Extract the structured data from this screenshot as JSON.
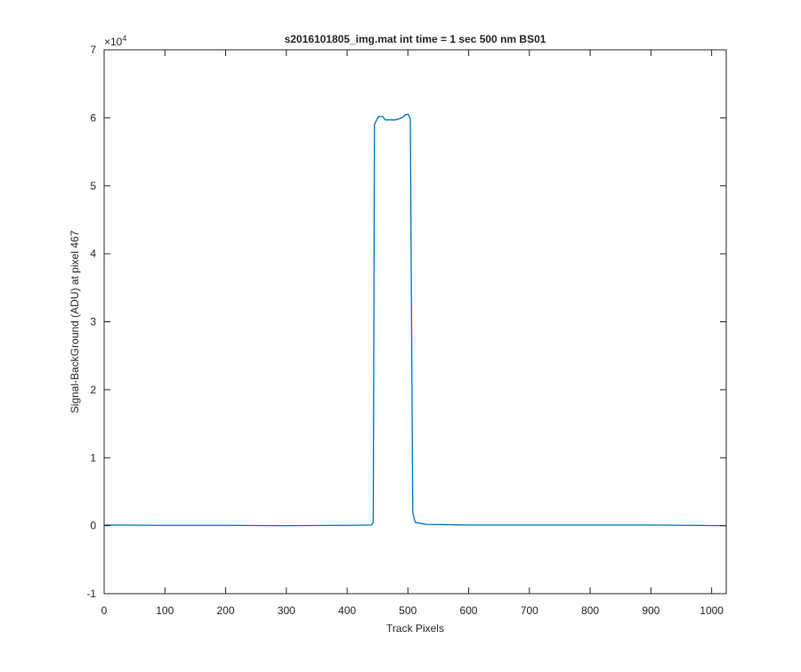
{
  "chart_data": {
    "type": "line",
    "title": "s2016101805_img.mat int time = 1 sec  500 nm BS01",
    "xlabel": "Track Pixels",
    "ylabel": "Signal-BackGround (ADU) at pixel 467",
    "y_exponent_base": "×10",
    "y_exponent_power": "4",
    "xlim": [
      0,
      1024
    ],
    "ylim": [
      -1,
      7
    ],
    "y_scale_factor": 10000,
    "x_ticks": [
      0,
      100,
      200,
      300,
      400,
      500,
      600,
      700,
      800,
      900,
      1000
    ],
    "y_ticks": [
      -1,
      0,
      1,
      2,
      3,
      4,
      5,
      6,
      7
    ],
    "x_tick_labels": [
      "0",
      "100",
      "200",
      "300",
      "400",
      "500",
      "600",
      "700",
      "800",
      "900",
      "1000"
    ],
    "y_tick_labels": [
      "-1",
      "0",
      "1",
      "2",
      "3",
      "4",
      "5",
      "6",
      "7"
    ],
    "grid": false,
    "box": true,
    "series": [
      {
        "color": "#0072bd",
        "points": [
          [
            1,
            0.01
          ],
          [
            100,
            0.005
          ],
          [
            200,
            0.005
          ],
          [
            300,
            0.0
          ],
          [
            400,
            0.005
          ],
          [
            440,
            0.01
          ],
          [
            443,
            0.05
          ],
          [
            445,
            5.9
          ],
          [
            448,
            5.96
          ],
          [
            452,
            6.02
          ],
          [
            458,
            6.02
          ],
          [
            463,
            5.97
          ],
          [
            470,
            5.97
          ],
          [
            480,
            5.97
          ],
          [
            490,
            6.0
          ],
          [
            497,
            6.05
          ],
          [
            501,
            6.05
          ],
          [
            504,
            5.98
          ],
          [
            506,
            3.0
          ],
          [
            508,
            0.2
          ],
          [
            512,
            0.05
          ],
          [
            530,
            0.02
          ],
          [
            600,
            0.01
          ],
          [
            700,
            0.01
          ],
          [
            800,
            0.01
          ],
          [
            900,
            0.01
          ],
          [
            1024,
            0.0
          ]
        ]
      }
    ]
  }
}
